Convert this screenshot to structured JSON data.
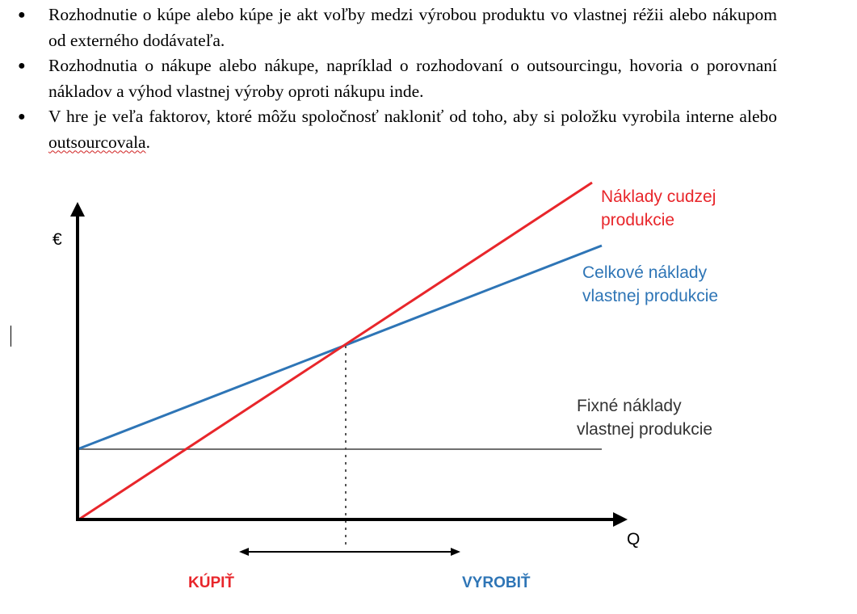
{
  "bullets": [
    "Rozhodnutie o kúpe alebo kúpe je akt voľby medzi výrobou produktu vo vlastnej réžii alebo nákupom od externého dodávateľa.",
    "Rozhodnutia o nákupe alebo nákupe, napríklad o rozhodovaní o outsourcingu, hovoria o porovnaní nákladov a výhod vlastnej výroby oproti nákupu inde.",
    {
      "before": "V hre je veľa faktorov, ktoré môžu spoločnosť nakloniť od toho, aby si položku vyrobila interne alebo ",
      "flagged": "outsourcovala",
      "after": "."
    }
  ],
  "diagram": {
    "y_axis_label": "€",
    "x_axis_label": "Q",
    "lines": [
      {
        "name_line1": "Náklady cudzej",
        "name_line2": "produkcie",
        "color": "#e8262b"
      },
      {
        "name_line1": "Celkové náklady",
        "name_line2": "vlastnej produkcie",
        "color": "#2e75b6"
      },
      {
        "name_line1": "Fixné náklady",
        "name_line2": "vlastnej produkcie",
        "color": "#333333"
      }
    ],
    "buy_label": "KÚPIŤ",
    "make_label": "VYROBIŤ",
    "buy_color": "#e8262b",
    "make_color": "#2e75b6"
  }
}
